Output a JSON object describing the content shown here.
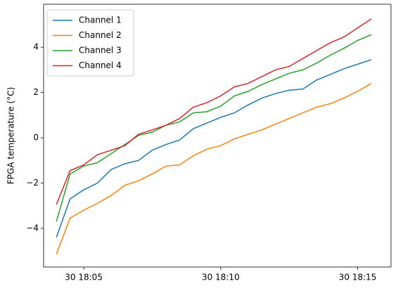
{
  "chart_data": {
    "type": "line",
    "y_label": "FPGA temperature (°C)",
    "x": [
      "30 18:04:00",
      "30 18:04:30",
      "30 18:05:00",
      "30 18:05:30",
      "30 18:06:00",
      "30 18:06:30",
      "30 18:07:00",
      "30 18:07:30",
      "30 18:08:00",
      "30 18:08:30",
      "30 18:09:00",
      "30 18:09:30",
      "30 18:10:00",
      "30 18:10:30",
      "30 18:11:00",
      "30 18:11:30",
      "30 18:12:00",
      "30 18:12:30",
      "30 18:13:00",
      "30 18:13:30",
      "30 18:14:00",
      "30 18:14:30",
      "30 18:15:00",
      "30 18:15:30"
    ],
    "series": [
      {
        "name": "Channel 1",
        "color": "#1f77b4",
        "values": [
          -4.4,
          -2.7,
          -2.3,
          -2.0,
          -1.4,
          -1.15,
          -1.0,
          -0.55,
          -0.3,
          -0.1,
          0.4,
          0.65,
          0.9,
          1.1,
          1.45,
          1.75,
          1.95,
          2.1,
          2.15,
          2.55,
          2.8,
          3.05,
          3.25,
          3.45
        ]
      },
      {
        "name": "Channel 2",
        "color": "#ff7f0e",
        "values": [
          -5.15,
          -3.55,
          -3.2,
          -2.9,
          -2.55,
          -2.1,
          -1.9,
          -1.6,
          -1.25,
          -1.2,
          -0.8,
          -0.5,
          -0.35,
          -0.05,
          0.15,
          0.35,
          0.6,
          0.85,
          1.1,
          1.35,
          1.5,
          1.75,
          2.05,
          2.4
        ]
      },
      {
        "name": "Channel 3",
        "color": "#2ca02c",
        "values": [
          -3.7,
          -1.6,
          -1.25,
          -1.1,
          -0.7,
          -0.3,
          0.1,
          0.25,
          0.55,
          0.7,
          1.1,
          1.15,
          1.4,
          1.85,
          2.05,
          2.35,
          2.6,
          2.85,
          3.0,
          3.3,
          3.65,
          3.95,
          4.3,
          4.55
        ]
      },
      {
        "name": "Channel 4",
        "color": "#d62728",
        "values": [
          -2.95,
          -1.45,
          -1.2,
          -0.75,
          -0.55,
          -0.35,
          0.15,
          0.35,
          0.55,
          0.85,
          1.35,
          1.55,
          1.85,
          2.25,
          2.4,
          2.7,
          3.0,
          3.15,
          3.5,
          3.85,
          4.2,
          4.45,
          4.85,
          5.25
        ]
      }
    ],
    "xlim": [
      "30 18:03:32",
      "30 18:16:13"
    ],
    "xticks": [
      {
        "value": "30 18:05:00",
        "label": "30 18:05"
      },
      {
        "value": "30 18:10:00",
        "label": "30 18:10"
      },
      {
        "value": "30 18:15:00",
        "label": "30 18:15"
      }
    ],
    "ylim": [
      -5.71,
      5.9
    ],
    "yticks": [
      {
        "value": -4,
        "label": "−4"
      },
      {
        "value": -2,
        "label": "−2"
      },
      0,
      2,
      4
    ],
    "legend": "upper-left"
  }
}
